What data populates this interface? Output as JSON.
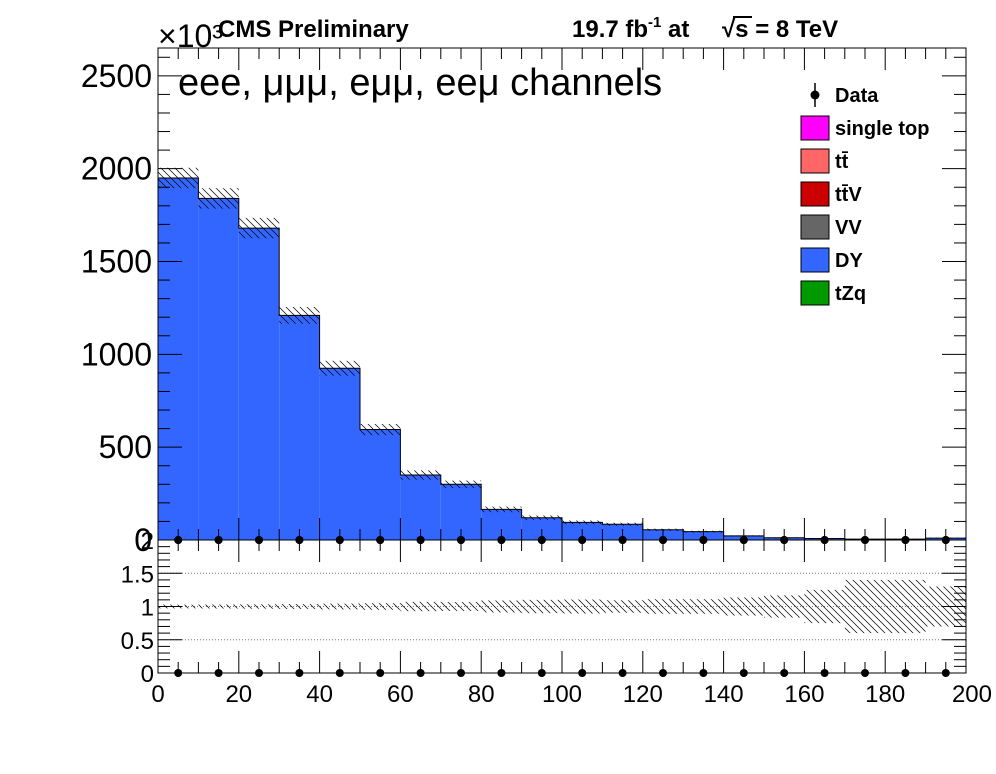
{
  "header": {
    "cms_label": "CMS Preliminary",
    "lumi_value": "19.7 fb",
    "lumi_exponent": "-1",
    "lumi_at": " at",
    "sqrt_symbol": "√",
    "sqrt_s": "s",
    "energy": " = 8 TeV",
    "exponent_label": "×10³"
  },
  "channels_label": "eee, μμμ, eμμ, eeμ channels",
  "colors": {
    "data": "#000000",
    "single_top": "#ff00ff",
    "ttbar": "#ff6666",
    "ttV": "#cc0000",
    "VV": "#666666",
    "DY": "#3366ff",
    "tZq": "#009900",
    "grid": "#777777"
  },
  "legend": [
    {
      "key": "data",
      "label": "Data",
      "style": "marker"
    },
    {
      "key": "single_top",
      "label": "single top",
      "style": "box"
    },
    {
      "key": "ttbar",
      "label": "tt̄",
      "style": "box"
    },
    {
      "key": "ttV",
      "label": "tt̄V",
      "style": "box"
    },
    {
      "key": "VV",
      "label": "VV",
      "style": "box"
    },
    {
      "key": "DY",
      "label": "DY",
      "style": "box"
    },
    {
      "key": "tZq",
      "label": "tZq",
      "style": "box"
    }
  ],
  "chart_data": [
    {
      "type": "bar",
      "panel": "main",
      "stacked_histogram": true,
      "bin_edges": [
        0,
        10,
        20,
        30,
        40,
        50,
        60,
        70,
        80,
        90,
        100,
        110,
        120,
        130,
        140,
        150,
        160,
        170,
        180,
        190,
        200
      ],
      "x_centers": [
        5,
        15,
        25,
        35,
        45,
        55,
        65,
        75,
        85,
        95,
        105,
        115,
        125,
        135,
        145,
        155,
        165,
        175,
        185,
        195
      ],
      "series": [
        {
          "name": "DY",
          "values": [
            1950,
            1840,
            1680,
            1210,
            925,
            595,
            350,
            300,
            165,
            120,
            95,
            85,
            55,
            45,
            22,
            12,
            8,
            5,
            5,
            10
          ]
        },
        {
          "name": "Data",
          "values": [
            0,
            0,
            0,
            0,
            0,
            0,
            0,
            0,
            0,
            0,
            0,
            0,
            0,
            0,
            0,
            0,
            0,
            0,
            0,
            0
          ]
        }
      ],
      "mc_uncertainty": [
        55,
        55,
        55,
        45,
        40,
        30,
        25,
        20,
        15,
        12,
        10,
        8,
        6,
        5,
        3,
        2,
        2,
        2,
        2,
        3
      ],
      "ylim": [
        0,
        2650
      ],
      "yticks": [
        0,
        500,
        1000,
        1500,
        2000,
        2500
      ],
      "ytick_labels": [
        "0",
        "500",
        "1000",
        "1500",
        "2000",
        "2500"
      ],
      "xlim": [
        0,
        200
      ]
    },
    {
      "type": "scatter",
      "panel": "ratio",
      "x": [
        5,
        15,
        25,
        35,
        45,
        55,
        65,
        75,
        85,
        95,
        105,
        115,
        125,
        135,
        145,
        155,
        165,
        175,
        185,
        195
      ],
      "y": [
        0,
        0,
        0,
        0,
        0,
        0,
        0,
        0,
        0,
        0,
        0,
        0,
        0,
        0,
        0,
        0,
        0,
        0,
        0,
        0
      ],
      "top_markers_y": [
        2,
        2,
        2,
        2,
        2,
        2,
        2,
        2,
        2,
        2,
        2,
        2,
        2,
        2,
        2,
        2,
        2,
        2,
        2,
        2
      ],
      "band_halfwidth": [
        0.028,
        0.03,
        0.033,
        0.037,
        0.043,
        0.05,
        0.07,
        0.067,
        0.09,
        0.1,
        0.105,
        0.094,
        0.11,
        0.11,
        0.136,
        0.167,
        0.25,
        0.4,
        0.4,
        0.3
      ],
      "ylim": [
        0,
        2
      ],
      "yticks": [
        0,
        0.5,
        1,
        1.5,
        2
      ],
      "ytick_labels": [
        "0",
        "0.5",
        "1",
        "1.5",
        "2"
      ],
      "gridlines_y": [
        0.5,
        1,
        1.5
      ],
      "xlim": [
        0,
        200
      ],
      "xticks": [
        0,
        20,
        40,
        60,
        80,
        100,
        120,
        140,
        160,
        180,
        200
      ],
      "xtick_labels": [
        "0",
        "20",
        "40",
        "60",
        "80",
        "100",
        "120",
        "140",
        "160",
        "180",
        "200"
      ]
    }
  ]
}
